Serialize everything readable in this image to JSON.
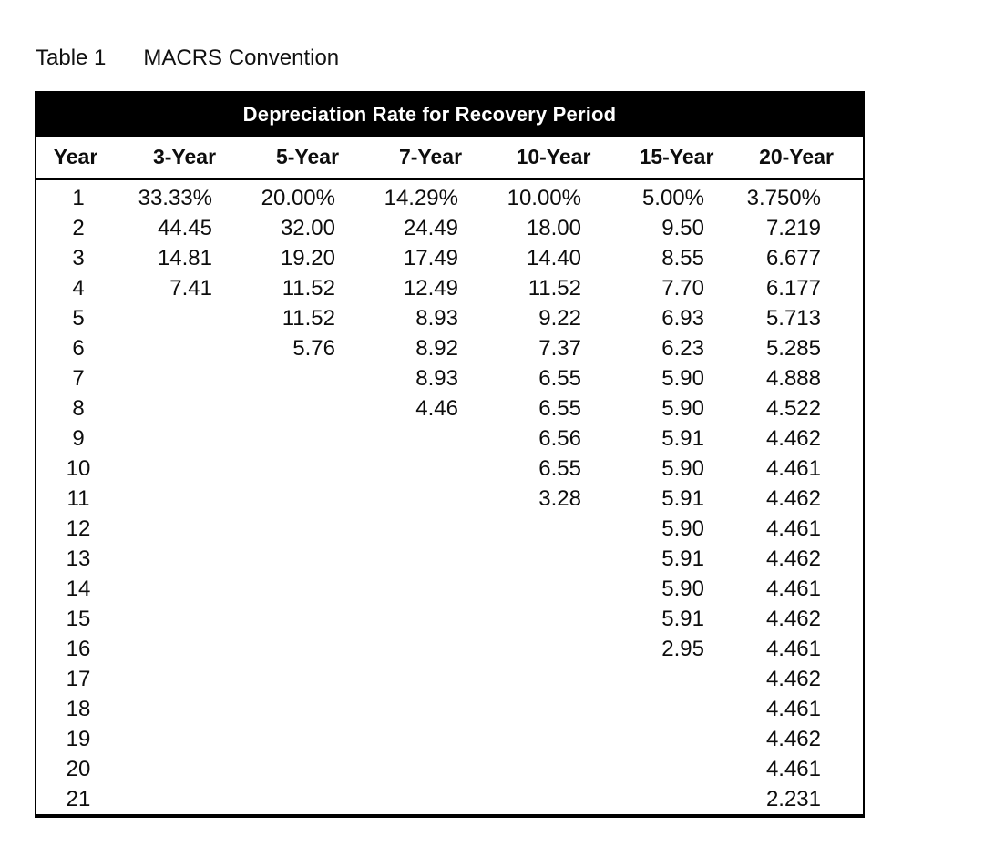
{
  "caption": {
    "label": "Table 1",
    "title": "MACRS Convention"
  },
  "table": {
    "band_title": "Depreciation Rate for Recovery Period",
    "columns": [
      "Year",
      "3-Year",
      "5-Year",
      "7-Year",
      "10-Year",
      "15-Year",
      "20-Year"
    ],
    "rows": [
      {
        "year": "1",
        "values": [
          "33.33%",
          "20.00%",
          "14.29%",
          "10.00%",
          "5.00%",
          "3.750%"
        ]
      },
      {
        "year": "2",
        "values": [
          "44.45",
          "32.00",
          "24.49",
          "18.00",
          "9.50",
          "7.219"
        ]
      },
      {
        "year": "3",
        "values": [
          "14.81",
          "19.20",
          "17.49",
          "14.40",
          "8.55",
          "6.677"
        ]
      },
      {
        "year": "4",
        "values": [
          "7.41",
          "11.52",
          "12.49",
          "11.52",
          "7.70",
          "6.177"
        ]
      },
      {
        "year": "5",
        "values": [
          "",
          "11.52",
          "8.93",
          "9.22",
          "6.93",
          "5.713"
        ]
      },
      {
        "year": "6",
        "values": [
          "",
          "5.76",
          "8.92",
          "7.37",
          "6.23",
          "5.285"
        ]
      },
      {
        "year": "7",
        "values": [
          "",
          "",
          "8.93",
          "6.55",
          "5.90",
          "4.888"
        ]
      },
      {
        "year": "8",
        "values": [
          "",
          "",
          "4.46",
          "6.55",
          "5.90",
          "4.522"
        ]
      },
      {
        "year": "9",
        "values": [
          "",
          "",
          "",
          "6.56",
          "5.91",
          "4.462"
        ]
      },
      {
        "year": "10",
        "values": [
          "",
          "",
          "",
          "6.55",
          "5.90",
          "4.461"
        ]
      },
      {
        "year": "11",
        "values": [
          "",
          "",
          "",
          "3.28",
          "5.91",
          "4.462"
        ]
      },
      {
        "year": "12",
        "values": [
          "",
          "",
          "",
          "",
          "5.90",
          "4.461"
        ]
      },
      {
        "year": "13",
        "values": [
          "",
          "",
          "",
          "",
          "5.91",
          "4.462"
        ]
      },
      {
        "year": "14",
        "values": [
          "",
          "",
          "",
          "",
          "5.90",
          "4.461"
        ]
      },
      {
        "year": "15",
        "values": [
          "",
          "",
          "",
          "",
          "5.91",
          "4.462"
        ]
      },
      {
        "year": "16",
        "values": [
          "",
          "",
          "",
          "",
          "2.95",
          "4.461"
        ]
      },
      {
        "year": "17",
        "values": [
          "",
          "",
          "",
          "",
          "",
          "4.462"
        ]
      },
      {
        "year": "18",
        "values": [
          "",
          "",
          "",
          "",
          "",
          "4.461"
        ]
      },
      {
        "year": "19",
        "values": [
          "",
          "",
          "",
          "",
          "",
          "4.462"
        ]
      },
      {
        "year": "20",
        "values": [
          "",
          "",
          "",
          "",
          "",
          "4.461"
        ]
      },
      {
        "year": "21",
        "values": [
          "",
          "",
          "",
          "",
          "",
          "2.231"
        ]
      }
    ]
  },
  "colors": {
    "band_background": "#000000",
    "band_text": "#ffffff",
    "body_text": "#0d0d0d",
    "border": "#000000",
    "page_background": "#ffffff"
  }
}
